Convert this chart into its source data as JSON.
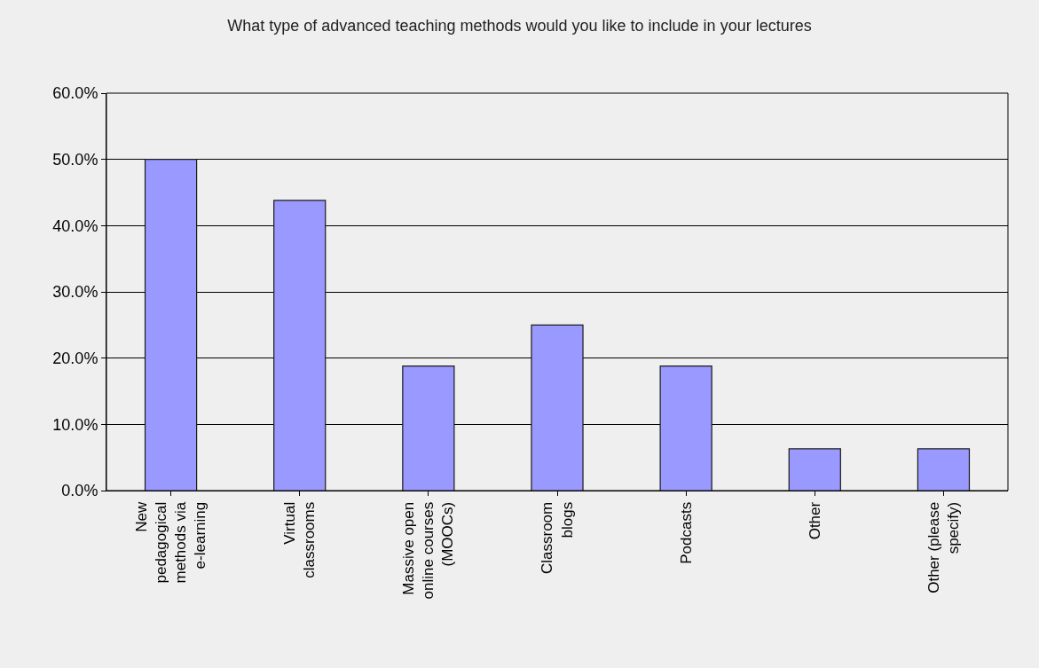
{
  "chart_data": {
    "type": "bar",
    "title": "What type of advanced teaching methods would you like to include in your lectures",
    "categories": [
      "New pedagogical methods via e-learning",
      "Virtual classrooms",
      "Massive open online courses (MOOCs)",
      "Classroom blogs",
      "Podcasts",
      "Other",
      "Other (please specify)"
    ],
    "values": [
      50.0,
      43.8,
      18.8,
      25.0,
      18.8,
      6.3,
      6.3
    ],
    "color": "#9999ff",
    "ylim": [
      0,
      60
    ],
    "yticks": [
      {
        "value": 0,
        "label": "0.0%"
      },
      {
        "value": 10,
        "label": "10.0%"
      },
      {
        "value": 20,
        "label": "20.0%"
      },
      {
        "value": 30,
        "label": "30.0%"
      },
      {
        "value": 40,
        "label": "40.0%"
      },
      {
        "value": 50,
        "label": "50.0%"
      },
      {
        "value": 60,
        "label": "60.0%"
      }
    ],
    "grid": "y"
  }
}
